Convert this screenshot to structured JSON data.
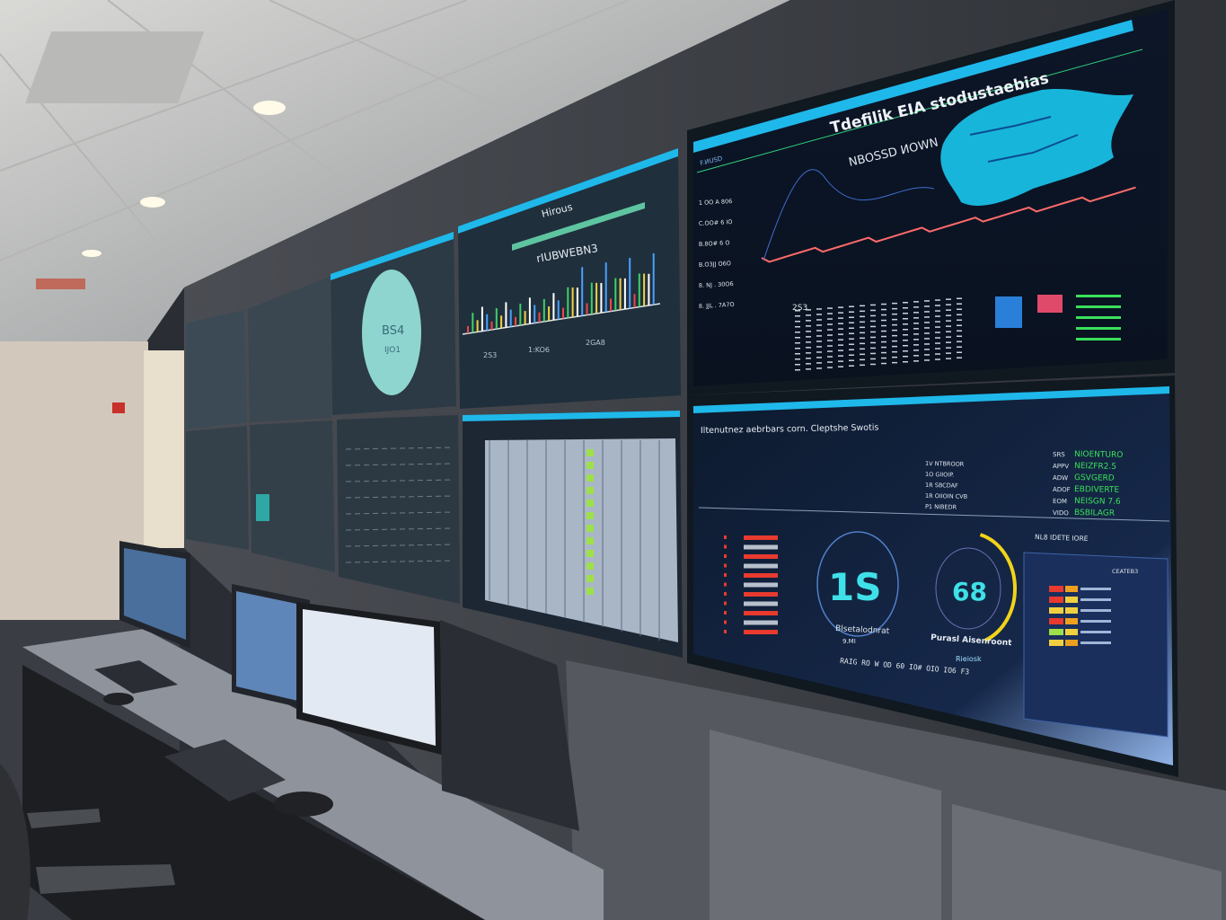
{
  "scene": "control room video wall",
  "colors": {
    "accent": "#1fb8ea",
    "screen_bg": "#0b1526",
    "wall": "#3c3f45",
    "ceiling": "#cfd0d0",
    "desk": "#8e939c",
    "map": "#19c6f0",
    "gauge_text": "#3fe0e8",
    "gauge_arc": "#f2d31a",
    "ok": "#39e05a",
    "alert": "#e83a2e"
  },
  "upper_right_screen": {
    "title": "Tdefilik EIA stodustaebias",
    "subtitle": "NBOSSD ИОWN",
    "corner_label": "F.ИUSD",
    "axis_labels": [
      "1 OO A 806",
      "C.OO# 6 IO",
      "B.8O# 6 O",
      "B.O3JJ O6O",
      "8. NJ . 30O6",
      "8. JJL . 7A7O"
    ],
    "table_header": "2S3"
  },
  "lower_right_screen": {
    "title": "Iltenutnez aebrbars corn. Cleptshe Swotis",
    "status_list": [
      {
        "code": "SRS",
        "label": "NIOENTURO"
      },
      {
        "code": "APPV",
        "label": "NEIZFR2.5"
      },
      {
        "code": "ADW",
        "label": "GSVGERD"
      },
      {
        "code": "ADOF",
        "label": "EBDIVERTE"
      },
      {
        "code": "EOM",
        "label": "NEISGN 7.6"
      },
      {
        "code": "VIDO",
        "label": "BSBILAGR"
      }
    ],
    "mid_list": [
      "1V  NTBROOR",
      "1O  GIIOIP.",
      "1R  SBCDAF",
      "1R  OIIOIN  CVB",
      "P1  NIBEDR"
    ],
    "gauge1": {
      "value": "1S",
      "label": "Blsetalodnrat",
      "sub": "9.MI"
    },
    "gauge2": {
      "value": "68",
      "label": "Purasl Aisenroont",
      "sub": "Rieiosk",
      "fill_fraction": 0.4
    },
    "panel_title": "NL8 IDETE IORE",
    "panel_header": "CEATEB3",
    "footer_row": "RAIG  RO  W  OD  60  IO#  OIO  IO6  F3"
  },
  "upper_mid_screen": {
    "title": "Hirous",
    "subtitle": "rIUBWEBN3",
    "ticks": [
      "2S3",
      "1:KO6",
      "2GA8"
    ]
  },
  "upper_left_screen": {
    "circle_text": "BS4",
    "circle_sub": "IJO1"
  }
}
